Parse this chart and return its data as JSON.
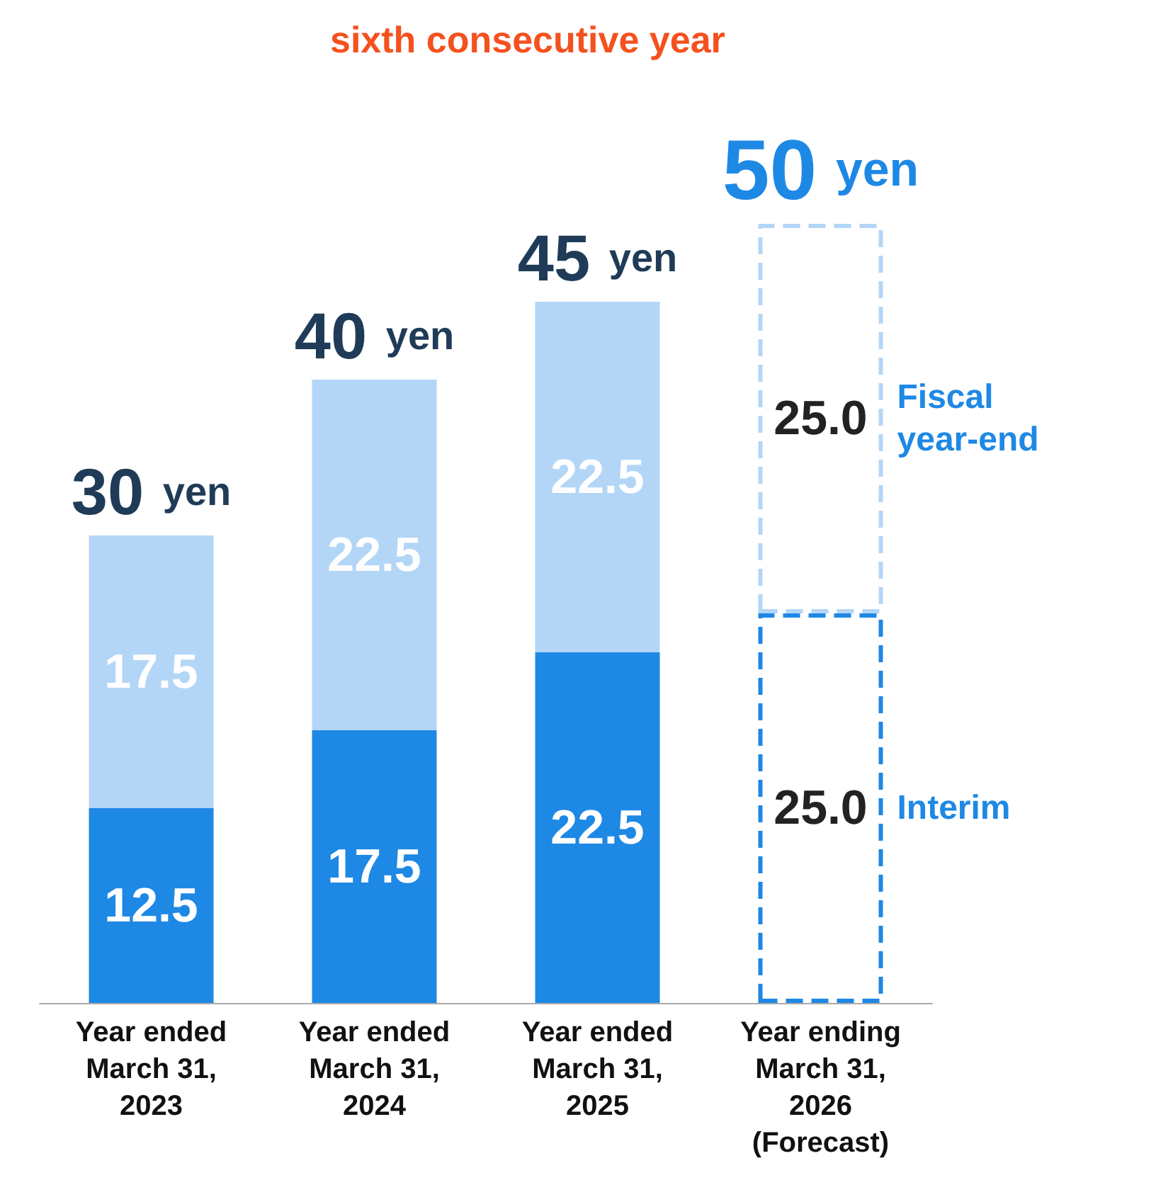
{
  "chart_data": {
    "type": "bar",
    "title": "sixth consecutive year",
    "stacked": true,
    "legend": "right",
    "grid": false,
    "categories": [
      "Year ended\nMarch 31,\n2023",
      "Year ended\nMarch 31,\n2024",
      "Year ended\nMarch 31,\n2025",
      "Year ending\nMarch 31,\n2026\n(Forecast)"
    ],
    "series": [
      {
        "name": "Interim",
        "color": "#1e88e5",
        "colors": [
          "#1e88e5",
          "#1e88e5",
          "#1e88e5",
          "#ffffff"
        ],
        "values": [
          12.5,
          17.5,
          22.5,
          25.0
        ],
        "value_labels": [
          "12.5",
          "17.5",
          "22.5",
          "25.0"
        ]
      },
      {
        "name": "Fiscal year-end",
        "color": "#b3d6f7",
        "colors": [
          "#b3d6f7",
          "#b3d6f7",
          "#b3d6f7",
          "#ffffff"
        ],
        "values": [
          17.5,
          22.5,
          22.5,
          25.0
        ],
        "value_labels": [
          "17.5",
          "22.5",
          "22.5",
          "25.0"
        ]
      }
    ],
    "totals": [
      "30 yen",
      "40 yen",
      "45 yen",
      "50 yen"
    ]
  }
}
